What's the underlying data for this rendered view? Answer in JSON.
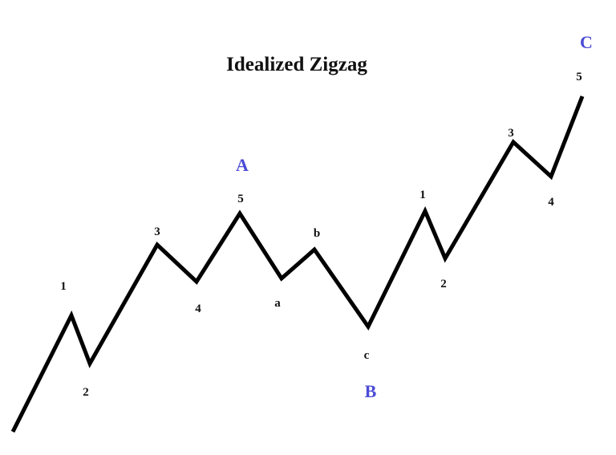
{
  "title": "Idealized Zigzag",
  "colors": {
    "line": "#000000",
    "wave_label": "#111111",
    "major_label": "#4b4bd6"
  },
  "labels": {
    "w1": "1",
    "w2": "2",
    "w3": "3",
    "w4": "4",
    "w5": "5",
    "A": "A",
    "a": "a",
    "b": "b",
    "c": "c",
    "B": "B",
    "c1": "1",
    "c2": "2",
    "c3": "3",
    "c4": "4",
    "c5": "5",
    "C": "C"
  }
}
